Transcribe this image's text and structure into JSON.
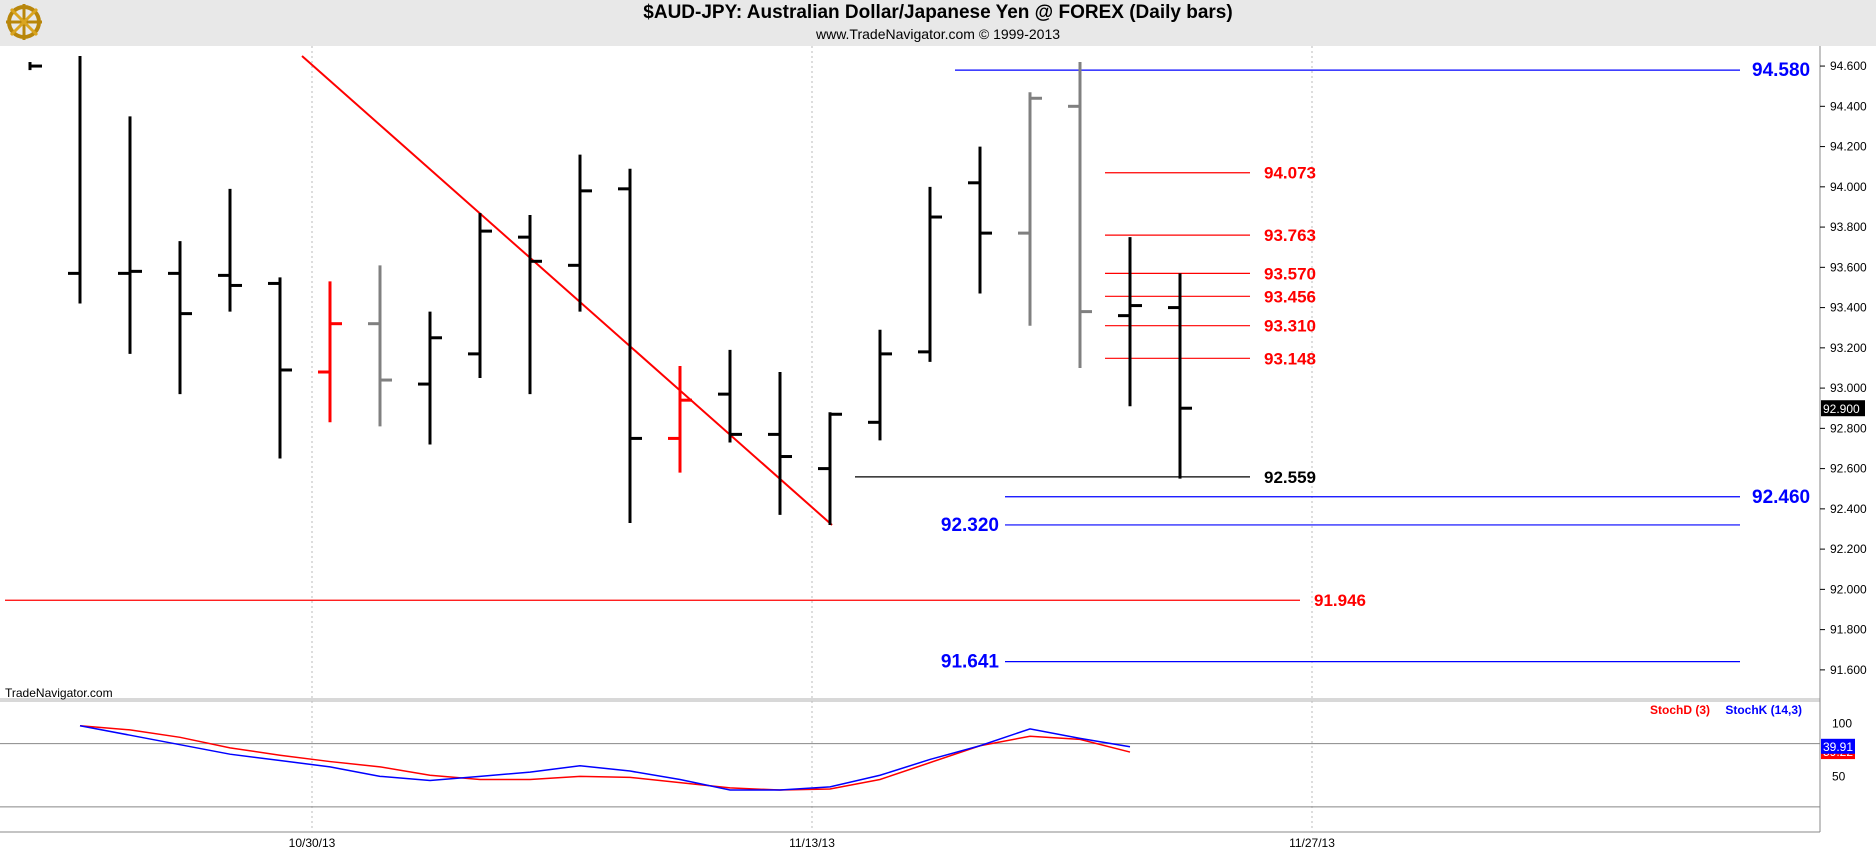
{
  "header": {
    "title": "$AUD-JPY:  Australian Dollar/Japanese Yen @ FOREX  (Daily bars)",
    "subtitle": "www.TradeNavigator.com © 1999-2013",
    "logo_icon": "ship-wheel-logo-icon"
  },
  "watermark": "TradeNavigator.com",
  "colors": {
    "up_bar": "#000000",
    "red_bar": "#ff0000",
    "gray_bar": "#808080",
    "blue_level": "#0000ff",
    "red_level": "#ff0000",
    "trendline": "#ff0000",
    "stoch_d": "#ff0000",
    "stoch_k": "#0000ff"
  },
  "chart_data": [
    {
      "type": "ohlc",
      "title": "$AUD-JPY:  Australian Dollar/Japanese Yen @ FOREX  (Daily bars)",
      "y_axis": {
        "ticks": [
          "94.600",
          "94.400",
          "94.200",
          "94.000",
          "93.800",
          "93.600",
          "93.400",
          "93.200",
          "93.000",
          "92.800",
          "92.600",
          "92.400",
          "92.200",
          "92.000",
          "91.800",
          "91.600"
        ],
        "ylim": [
          91.5,
          94.65
        ],
        "last_price_label": "92.900"
      },
      "x_axis": {
        "tick_labels": [
          {
            "label": "10/30/13",
            "bar": 5.5
          },
          {
            "label": "11/13/13",
            "bar": 15.5
          },
          {
            "label": "11/27/13",
            "bar": 25.5
          }
        ],
        "bar_count": 35
      },
      "bars": [
        {
          "i": 0,
          "high": 94.62,
          "low": 94.58,
          "open": null,
          "close": 94.6,
          "color": "black"
        },
        {
          "i": 1,
          "high": 94.65,
          "low": 93.42,
          "open": 93.57,
          "close": null,
          "color": "black"
        },
        {
          "i": 2,
          "high": 94.35,
          "low": 93.17,
          "open": 93.57,
          "close": 93.58,
          "color": "black"
        },
        {
          "i": 3,
          "high": 93.73,
          "low": 92.97,
          "open": 93.57,
          "close": 93.37,
          "color": "black"
        },
        {
          "i": 4,
          "high": 93.99,
          "low": 93.38,
          "open": 93.56,
          "close": 93.51,
          "color": "black"
        },
        {
          "i": 5,
          "high": 93.55,
          "low": 92.65,
          "open": 93.52,
          "close": 93.09,
          "color": "black"
        },
        {
          "i": 6,
          "high": 93.53,
          "low": 92.83,
          "open": 93.08,
          "close": 93.32,
          "color": "red"
        },
        {
          "i": 7,
          "high": 93.61,
          "low": 92.81,
          "open": 93.32,
          "close": 93.04,
          "color": "gray"
        },
        {
          "i": 8,
          "high": 93.38,
          "low": 92.72,
          "open": 93.02,
          "close": 93.25,
          "color": "black"
        },
        {
          "i": 9,
          "high": 93.87,
          "low": 93.05,
          "open": 93.17,
          "close": 93.78,
          "color": "black"
        },
        {
          "i": 10,
          "high": 93.86,
          "low": 92.97,
          "open": 93.75,
          "close": 93.63,
          "color": "black"
        },
        {
          "i": 11,
          "high": 94.16,
          "low": 93.38,
          "open": 93.61,
          "close": 93.98,
          "color": "black"
        },
        {
          "i": 12,
          "high": 94.09,
          "low": 92.33,
          "open": 93.99,
          "close": 92.75,
          "color": "black"
        },
        {
          "i": 13,
          "high": 93.11,
          "low": 92.58,
          "open": 92.75,
          "close": 92.94,
          "color": "red"
        },
        {
          "i": 14,
          "high": 93.19,
          "low": 92.73,
          "open": 92.97,
          "close": 92.77,
          "color": "black"
        },
        {
          "i": 15,
          "high": 93.08,
          "low": 92.37,
          "open": 92.77,
          "close": 92.66,
          "color": "black"
        },
        {
          "i": 16,
          "high": 92.88,
          "low": 92.32,
          "open": 92.6,
          "close": 92.87,
          "color": "black"
        },
        {
          "i": 17,
          "high": 93.29,
          "low": 92.74,
          "open": 92.83,
          "close": 93.17,
          "color": "black"
        },
        {
          "i": 18,
          "high": 94.0,
          "low": 93.13,
          "open": 93.18,
          "close": 93.85,
          "color": "black"
        },
        {
          "i": 19,
          "high": 94.2,
          "low": 93.47,
          "open": 94.02,
          "close": 93.77,
          "color": "black"
        },
        {
          "i": 20,
          "high": 94.47,
          "low": 93.31,
          "open": 93.77,
          "close": 94.44,
          "color": "gray"
        },
        {
          "i": 21,
          "high": 94.62,
          "low": 93.1,
          "open": 94.4,
          "close": 93.38,
          "color": "gray"
        },
        {
          "i": 22,
          "high": 93.75,
          "low": 92.91,
          "open": 93.36,
          "close": 93.41,
          "color": "black"
        },
        {
          "i": 23,
          "high": 93.57,
          "low": 92.55,
          "open": 93.4,
          "close": 92.9,
          "color": "black"
        }
      ],
      "levels": [
        {
          "label": "94.580",
          "value": 94.58,
          "color": "blue",
          "x_start_bar": 18.5,
          "x_end_bar": 34.2,
          "label_pos": "right"
        },
        {
          "label": "94.073",
          "value": 94.07,
          "color": "red",
          "x_start_bar": 21.5,
          "x_end_bar": 24.4,
          "label_pos": "after"
        },
        {
          "label": "93.763",
          "value": 93.76,
          "color": "red",
          "x_start_bar": 21.5,
          "x_end_bar": 24.4,
          "label_pos": "after"
        },
        {
          "label": "93.570",
          "value": 93.57,
          "color": "red",
          "x_start_bar": 21.5,
          "x_end_bar": 24.4,
          "label_pos": "after"
        },
        {
          "label": "93.456",
          "value": 93.456,
          "color": "red",
          "x_start_bar": 21.5,
          "x_end_bar": 24.4,
          "label_pos": "after"
        },
        {
          "label": "93.310",
          "value": 93.31,
          "color": "red",
          "x_start_bar": 21.5,
          "x_end_bar": 24.4,
          "label_pos": "after"
        },
        {
          "label": "93.148",
          "value": 93.148,
          "color": "red",
          "x_start_bar": 21.5,
          "x_end_bar": 24.4,
          "label_pos": "after"
        },
        {
          "label": "92.559",
          "value": 92.559,
          "color": "black",
          "x_start_bar": 16.5,
          "x_end_bar": 24.4,
          "label_pos": "after"
        },
        {
          "label": "92.460",
          "value": 92.46,
          "color": "blue",
          "x_start_bar": 19.5,
          "x_end_bar": 34.2,
          "label_pos": "right"
        },
        {
          "label": "92.320",
          "value": 92.32,
          "color": "blue",
          "x_start_bar": 19.5,
          "x_end_bar": 34.2,
          "label_pos": "before"
        },
        {
          "label": "91.946",
          "value": 91.946,
          "color": "red",
          "x_start_bar": -0.5,
          "x_end_bar": 25.4,
          "label_pos": "after"
        },
        {
          "label": "91.641",
          "value": 91.641,
          "color": "blue",
          "x_start_bar": 19.5,
          "x_end_bar": 34.2,
          "label_pos": "before"
        }
      ],
      "trendline": {
        "from": {
          "bar": 5,
          "price": 94.65
        },
        "to": {
          "bar": 16,
          "price": 92.32
        },
        "color": "red"
      }
    },
    {
      "type": "line",
      "series": [
        {
          "name": "StochD (3)",
          "color": "red",
          "values": [
            97,
            93,
            86,
            76,
            69,
            63,
            58,
            50,
            46,
            46,
            49,
            48,
            43,
            38,
            36,
            37,
            46,
            62,
            78,
            87,
            84,
            72
          ],
          "last_label": "59.22"
        },
        {
          "name": "StochK (14,3)",
          "color": "blue",
          "values": [
            97,
            88,
            79,
            70,
            64,
            58,
            49,
            45,
            49,
            53,
            59,
            54,
            46,
            36,
            36,
            39,
            50,
            65,
            78,
            94,
            85,
            77
          ],
          "last_label": "39.91"
        }
      ],
      "y_axis": {
        "ticks": [
          "100",
          "50"
        ],
        "ylim": [
          0,
          110
        ],
        "gridlines": [
          80,
          20
        ]
      }
    }
  ]
}
